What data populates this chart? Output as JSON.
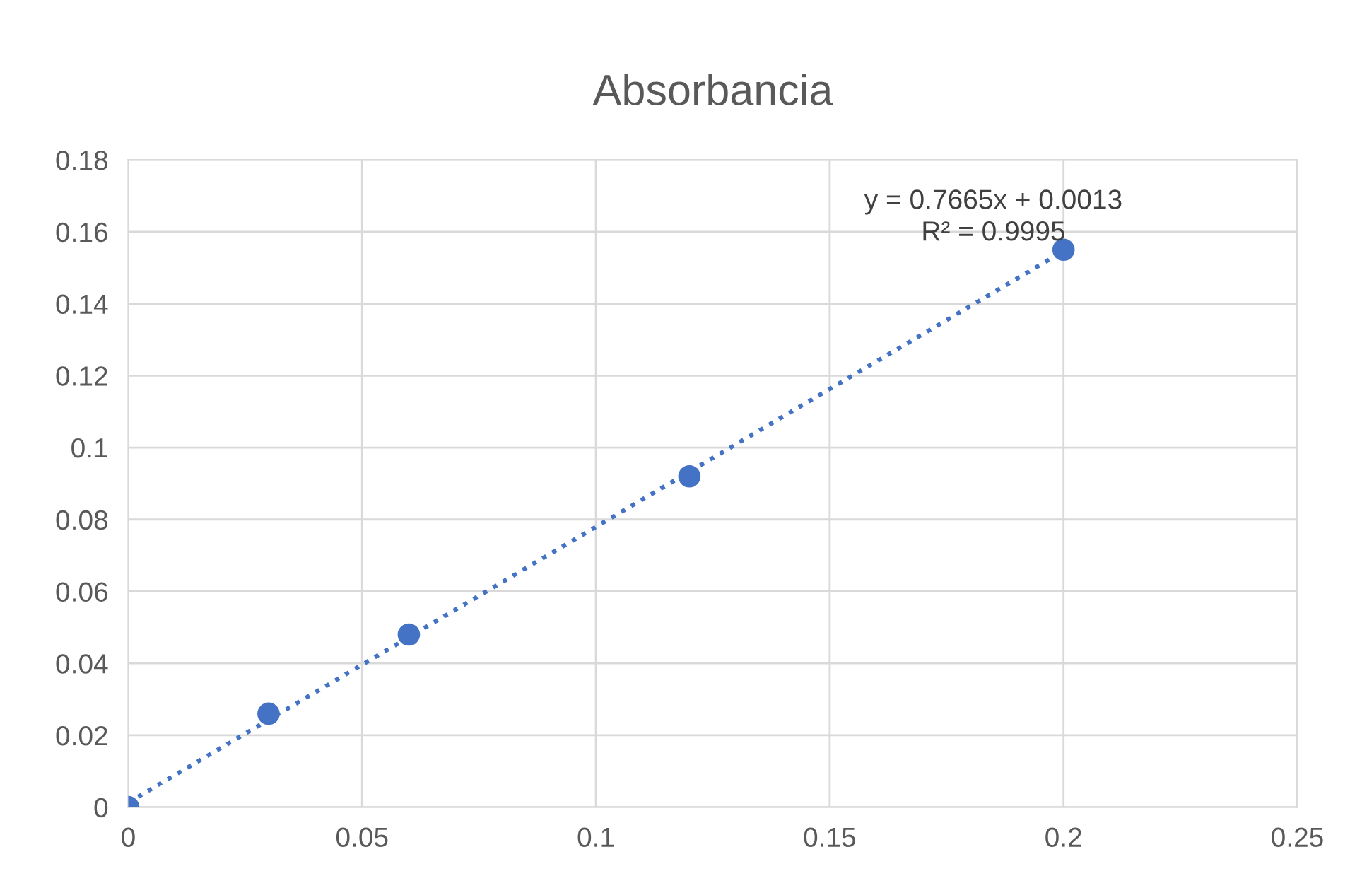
{
  "chart_data": {
    "type": "scatter",
    "title": "Absorbancia",
    "x": [
      0,
      0.03,
      0.06,
      0.12,
      0.2
    ],
    "series": [
      {
        "color": "#4472c4",
        "marker": "circle",
        "values": [
          0,
          0.026,
          0.048,
          0.092,
          0.155
        ]
      },
      {
        "type": "line",
        "color": "#4472c4",
        "marker": "none",
        "line_style": "dotted",
        "x": [
          0,
          0.2
        ],
        "values": [
          0.0013,
          0.1546
        ]
      }
    ],
    "annotations": [
      "y = 0.7665x + 0.0013\nR² = 0.9995"
    ],
    "xlim": [
      0,
      0.25
    ],
    "xticks": [
      0,
      0.05,
      0.1,
      0.15,
      0.2,
      0.25
    ],
    "ylim": [
      0,
      0.18
    ],
    "yticks": [
      0,
      0.02,
      0.04,
      0.06,
      0.08,
      0.1,
      0.12,
      0.14,
      0.16,
      0.18
    ],
    "grid": true
  }
}
